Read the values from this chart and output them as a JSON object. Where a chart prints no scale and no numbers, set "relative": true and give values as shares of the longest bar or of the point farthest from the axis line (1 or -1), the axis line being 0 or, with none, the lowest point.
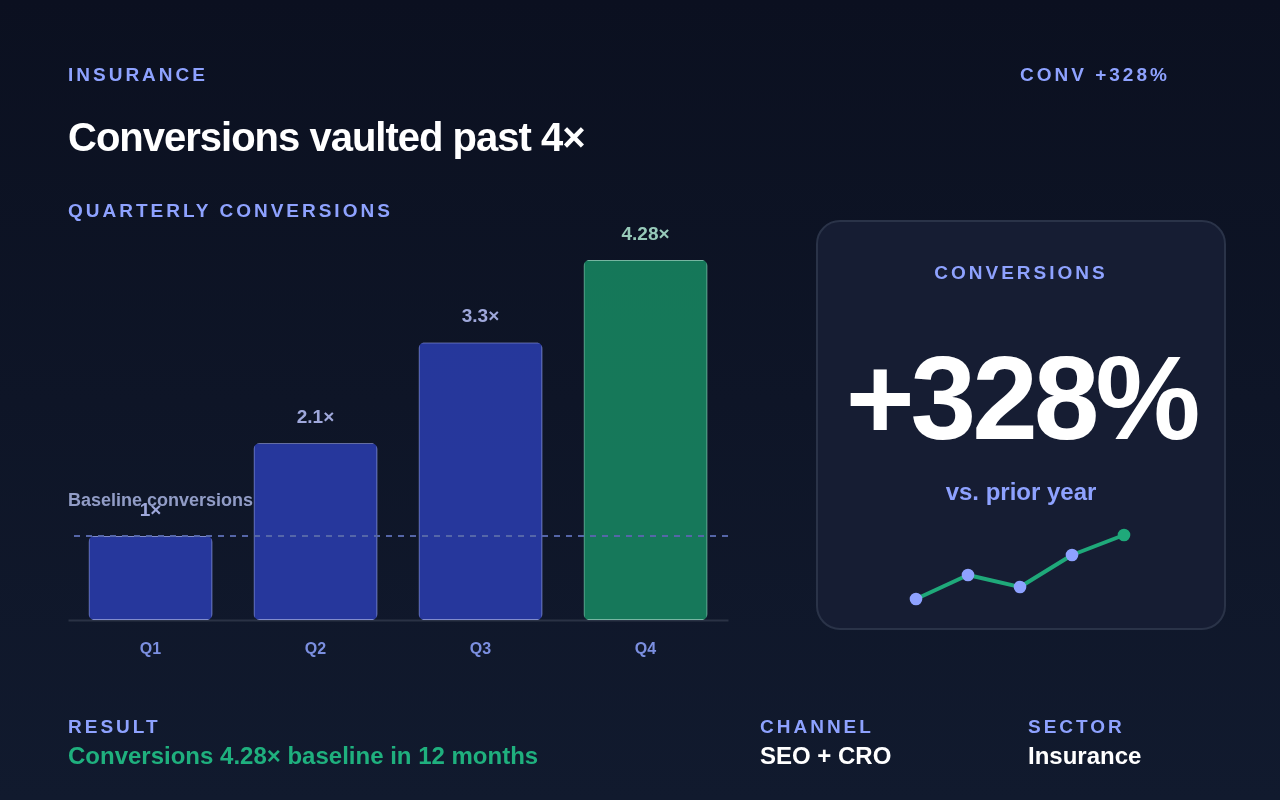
{
  "chart_data": [
    {
      "type": "bar",
      "title": "Conversions vaulted past 4×",
      "subtitle": "QUARTERLY CONVERSIONS",
      "annotations": [
        "INSURANCE",
        "CONV +328%",
        "RESULT",
        "Conversions 4.28× baseline in 12 months",
        "CHANNEL",
        "SEO + CRO",
        "SECTOR",
        "Insurance"
      ],
      "categories": [
        "Q1",
        "Q2",
        "Q3",
        "Q4"
      ],
      "values": [
        1,
        2.1,
        3.3,
        4.28
      ],
      "colors": [
        "#2a3db0",
        "#2a3db0",
        "#2a3db0",
        "#178a63"
      ],
      "value_labels": [
        "1×",
        "2.1×",
        "3.3×",
        "4.28×"
      ],
      "ylim": [
        0,
        4.28
      ],
      "ref_lines": [
        {
          "axis": "y",
          "value": 1,
          "label": "Baseline conversions",
          "color": "#5566a8",
          "line_style": "dashed"
        }
      ]
    },
    {
      "type": "other",
      "title": "CONVERSIONS",
      "annotations": [
        "+328%",
        "vs. prior year"
      ]
    },
    {
      "type": "line",
      "relative": true,
      "categories": [
        null,
        null,
        null,
        null,
        null
      ],
      "series": [
        {
          "color": "#1fa97a",
          "values": [
            0,
            0.375,
            0.1875,
            0.6875,
            1
          ],
          "colors": [
            "#8ea2ff",
            "#8ea2ff",
            "#8ea2ff",
            "#8ea2ff",
            "#1fa97a"
          ]
        }
      ],
      "marker": "circle",
      "line_style": "solid"
    }
  ]
}
